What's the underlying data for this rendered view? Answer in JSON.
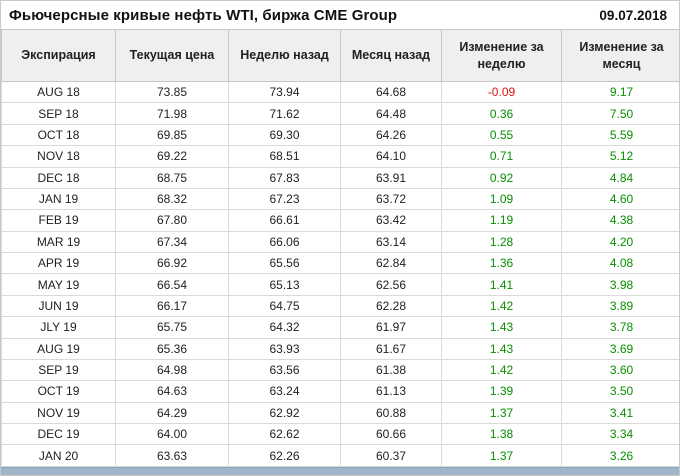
{
  "header": {
    "title": "Фьючерсные кривые нефть WTI, биржа CME Group",
    "date": "09.07.2018"
  },
  "colors": {
    "positive": "#089000",
    "negative": "#dd1111"
  },
  "chart_data": {
    "type": "table",
    "title": "Фьючерсные кривые нефть WTI, биржа CME Group",
    "date": "09.07.2018",
    "columns": [
      "Экспирация",
      "Текущая цена",
      "Неделю назад",
      "Месяц назад",
      "Изменение за неделю",
      "Изменение за месяц"
    ],
    "rows": [
      [
        "AUG 18",
        "73.85",
        "73.94",
        "64.68",
        "-0.09",
        "9.17"
      ],
      [
        "SEP 18",
        "71.98",
        "71.62",
        "64.48",
        "0.36",
        "7.50"
      ],
      [
        "OCT 18",
        "69.85",
        "69.30",
        "64.26",
        "0.55",
        "5.59"
      ],
      [
        "NOV 18",
        "69.22",
        "68.51",
        "64.10",
        "0.71",
        "5.12"
      ],
      [
        "DEC 18",
        "68.75",
        "67.83",
        "63.91",
        "0.92",
        "4.84"
      ],
      [
        "JAN 19",
        "68.32",
        "67.23",
        "63.72",
        "1.09",
        "4.60"
      ],
      [
        "FEB 19",
        "67.80",
        "66.61",
        "63.42",
        "1.19",
        "4.38"
      ],
      [
        "MAR 19",
        "67.34",
        "66.06",
        "63.14",
        "1.28",
        "4.20"
      ],
      [
        "APR 19",
        "66.92",
        "65.56",
        "62.84",
        "1.36",
        "4.08"
      ],
      [
        "MAY 19",
        "66.54",
        "65.13",
        "62.56",
        "1.41",
        "3.98"
      ],
      [
        "JUN 19",
        "66.17",
        "64.75",
        "62.28",
        "1.42",
        "3.89"
      ],
      [
        "JLY 19",
        "65.75",
        "64.32",
        "61.97",
        "1.43",
        "3.78"
      ],
      [
        "AUG 19",
        "65.36",
        "63.93",
        "61.67",
        "1.43",
        "3.69"
      ],
      [
        "SEP 19",
        "64.98",
        "63.56",
        "61.38",
        "1.42",
        "3.60"
      ],
      [
        "OCT 19",
        "64.63",
        "63.24",
        "61.13",
        "1.39",
        "3.50"
      ],
      [
        "NOV 19",
        "64.29",
        "62.92",
        "60.88",
        "1.37",
        "3.41"
      ],
      [
        "DEC 19",
        "64.00",
        "62.62",
        "60.66",
        "1.38",
        "3.34"
      ],
      [
        "JAN 20",
        "63.63",
        "62.26",
        "60.37",
        "1.37",
        "3.26"
      ]
    ]
  }
}
